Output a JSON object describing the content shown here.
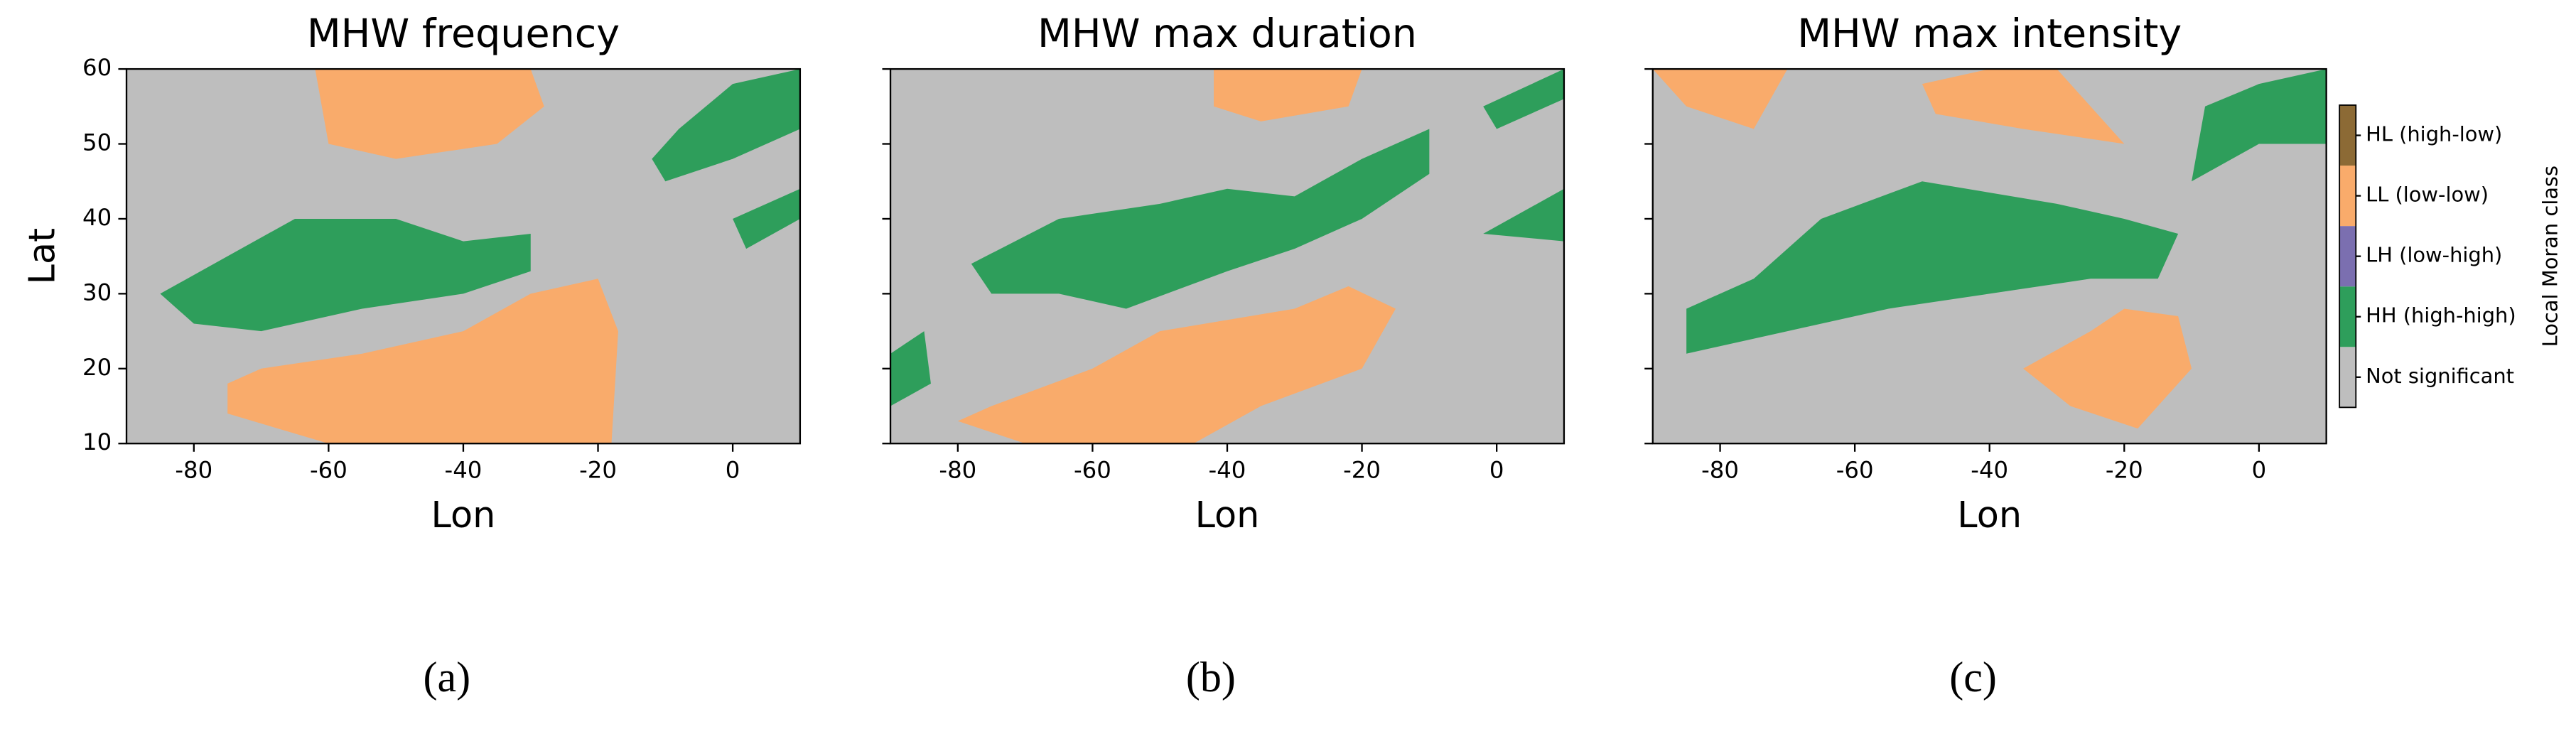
{
  "chart_data": [
    {
      "type": "map",
      "title": "MHW frequency",
      "xlabel": "Lon",
      "ylabel": "Lat",
      "caption": "(a)",
      "background": "#bebebe",
      "xlim": [
        -90,
        10
      ],
      "ylim": [
        10,
        60
      ],
      "xticks": [
        -80,
        -60,
        -40,
        -20,
        0
      ],
      "yticks": [
        10,
        20,
        30,
        40,
        50,
        60
      ],
      "ytick_labels": true,
      "regions": [
        {
          "color": "#f9ab6b",
          "polygon": [
            [
              -62,
              60
            ],
            [
              -30,
              60
            ],
            [
              -28,
              55
            ],
            [
              -35,
              50
            ],
            [
              -50,
              48
            ],
            [
              -60,
              50
            ]
          ]
        },
        {
          "color": "#f9ab6b",
          "polygon": [
            [
              -70,
              20
            ],
            [
              -55,
              22
            ],
            [
              -40,
              25
            ],
            [
              -30,
              30
            ],
            [
              -20,
              32
            ],
            [
              -17,
              25
            ],
            [
              -18,
              10
            ],
            [
              -60,
              10
            ],
            [
              -75,
              14
            ],
            [
              -75,
              18
            ]
          ]
        },
        {
          "color": "#2e9e5b",
          "polygon": [
            [
              -85,
              30
            ],
            [
              -75,
              35
            ],
            [
              -65,
              40
            ],
            [
              -50,
              40
            ],
            [
              -40,
              37
            ],
            [
              -30,
              38
            ],
            [
              -30,
              33
            ],
            [
              -40,
              30
            ],
            [
              -55,
              28
            ],
            [
              -70,
              25
            ],
            [
              -80,
              26
            ]
          ]
        },
        {
          "color": "#2e9e5b",
          "polygon": [
            [
              -8,
              52
            ],
            [
              0,
              58
            ],
            [
              10,
              60
            ],
            [
              10,
              52
            ],
            [
              0,
              48
            ],
            [
              -10,
              45
            ],
            [
              -12,
              48
            ]
          ]
        },
        {
          "color": "#2e9e5b",
          "polygon": [
            [
              0,
              40
            ],
            [
              10,
              44
            ],
            [
              10,
              40
            ],
            [
              2,
              36
            ]
          ]
        }
      ]
    },
    {
      "type": "map",
      "title": "MHW max duration",
      "xlabel": "Lon",
      "caption": "(b)",
      "background": "#bebebe",
      "xlim": [
        -90,
        10
      ],
      "ylim": [
        10,
        60
      ],
      "xticks": [
        -80,
        -60,
        -40,
        -20,
        0
      ],
      "yticks": [
        10,
        20,
        30,
        40,
        50,
        60
      ],
      "ytick_labels": false,
      "regions": [
        {
          "color": "#f9ab6b",
          "polygon": [
            [
              -42,
              60
            ],
            [
              -20,
              60
            ],
            [
              -22,
              55
            ],
            [
              -35,
              53
            ],
            [
              -42,
              55
            ]
          ]
        },
        {
          "color": "#f9ab6b",
          "polygon": [
            [
              -75,
              15
            ],
            [
              -60,
              20
            ],
            [
              -50,
              25
            ],
            [
              -30,
              28
            ],
            [
              -22,
              31
            ],
            [
              -15,
              28
            ],
            [
              -20,
              20
            ],
            [
              -35,
              15
            ],
            [
              -45,
              10
            ],
            [
              -70,
              10
            ],
            [
              -80,
              13
            ]
          ]
        },
        {
          "color": "#2e9e5b",
          "polygon": [
            [
              -78,
              34
            ],
            [
              -65,
              40
            ],
            [
              -50,
              42
            ],
            [
              -40,
              44
            ],
            [
              -30,
              43
            ],
            [
              -20,
              48
            ],
            [
              -10,
              52
            ],
            [
              -10,
              46
            ],
            [
              -20,
              40
            ],
            [
              -30,
              36
            ],
            [
              -40,
              33
            ],
            [
              -55,
              28
            ],
            [
              -65,
              30
            ],
            [
              -75,
              30
            ]
          ]
        },
        {
          "color": "#2e9e5b",
          "polygon": [
            [
              -2,
              55
            ],
            [
              10,
              60
            ],
            [
              10,
              56
            ],
            [
              0,
              52
            ]
          ]
        },
        {
          "color": "#2e9e5b",
          "polygon": [
            [
              -2,
              38
            ],
            [
              10,
              44
            ],
            [
              10,
              37
            ]
          ]
        },
        {
          "color": "#2e9e5b",
          "polygon": [
            [
              -90,
              22
            ],
            [
              -85,
              25
            ],
            [
              -84,
              18
            ],
            [
              -90,
              15
            ]
          ]
        }
      ]
    },
    {
      "type": "map",
      "title": "MHW max intensity",
      "xlabel": "Lon",
      "caption": "(c)",
      "background": "#bebebe",
      "xlim": [
        -90,
        10
      ],
      "ylim": [
        10,
        60
      ],
      "xticks": [
        -80,
        -60,
        -40,
        -20,
        0
      ],
      "yticks": [
        10,
        20,
        30,
        40,
        50,
        60
      ],
      "ytick_labels": false,
      "regions": [
        {
          "color": "#f9ab6b",
          "polygon": [
            [
              -90,
              60
            ],
            [
              -70,
              60
            ],
            [
              -75,
              52
            ],
            [
              -85,
              55
            ]
          ]
        },
        {
          "color": "#f9ab6b",
          "polygon": [
            [
              -50,
              58
            ],
            [
              -40,
              60
            ],
            [
              -30,
              60
            ],
            [
              -25,
              55
            ],
            [
              -20,
              50
            ],
            [
              -35,
              52
            ],
            [
              -48,
              54
            ]
          ]
        },
        {
          "color": "#f9ab6b",
          "polygon": [
            [
              -35,
              20
            ],
            [
              -25,
              25
            ],
            [
              -20,
              28
            ],
            [
              -12,
              27
            ],
            [
              -10,
              20
            ],
            [
              -18,
              12
            ],
            [
              -28,
              15
            ]
          ]
        },
        {
          "color": "#2e9e5b",
          "polygon": [
            [
              -85,
              28
            ],
            [
              -75,
              32
            ],
            [
              -65,
              40
            ],
            [
              -50,
              45
            ],
            [
              -30,
              42
            ],
            [
              -20,
              40
            ],
            [
              -12,
              38
            ],
            [
              -15,
              32
            ],
            [
              -25,
              32
            ],
            [
              -40,
              30
            ],
            [
              -55,
              28
            ],
            [
              -70,
              25
            ],
            [
              -85,
              22
            ]
          ]
        },
        {
          "color": "#2e9e5b",
          "polygon": [
            [
              -8,
              55
            ],
            [
              0,
              58
            ],
            [
              10,
              60
            ],
            [
              10,
              50
            ],
            [
              0,
              50
            ],
            [
              -10,
              45
            ]
          ]
        }
      ],
      "legend": {
        "title": "Local Moran class",
        "classes": [
          {
            "name": "Not significant",
            "color": "#bebebe"
          },
          {
            "name": "HH (high-high)",
            "color": "#2e9e5b"
          },
          {
            "name": "LH (low-high)",
            "color": "#7b6fb0"
          },
          {
            "name": "LL (low-low)",
            "color": "#f9ab6b"
          },
          {
            "name": "HL (high-low)",
            "color": "#8c6a35"
          }
        ]
      }
    }
  ]
}
